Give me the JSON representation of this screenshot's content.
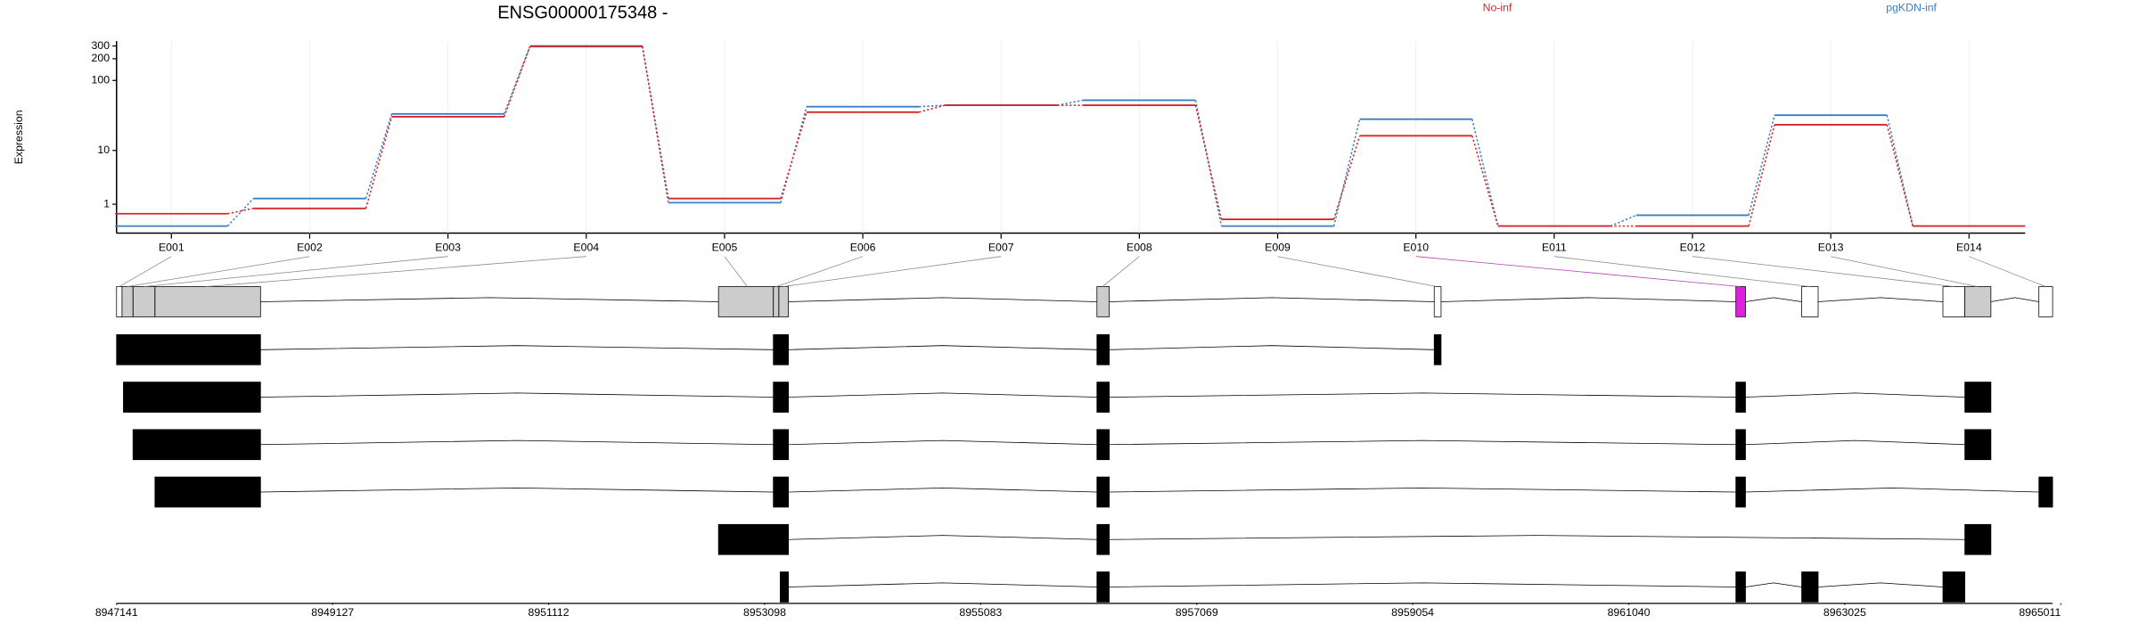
{
  "chart_data": {
    "type": "line",
    "title": "ENSG00000175348 -",
    "ylabel": "Expression",
    "categories": [
      "E001",
      "E002",
      "E003",
      "E004",
      "E005",
      "E006",
      "E007",
      "E008",
      "E009",
      "E010",
      "E011",
      "E012",
      "E013",
      "E014"
    ],
    "series": [
      {
        "name": "No-inf",
        "color": "#d62728",
        "values": [
          0.48,
          0.75,
          31,
          295,
          1.4,
          36,
          45,
          45,
          0.24,
          16.5,
          0,
          0,
          23.8,
          0
        ]
      },
      {
        "name": "pgKDN-inf",
        "color": "#3a7fc0",
        "values": [
          0,
          1.4,
          34,
          300,
          1.1,
          43,
          45,
          53,
          0,
          28.6,
          0,
          0.41,
          32.6,
          0
        ]
      }
    ],
    "ylim": [
      -0.2,
      350
    ],
    "yticks": [
      1,
      10,
      100,
      200,
      300
    ],
    "yscale": "log1p",
    "grid": true,
    "legend": "top",
    "x2lim": [
      8947141,
      8965011
    ],
    "x2ticks": [
      8947141,
      8949127,
      8951112,
      8953098,
      8955083,
      8957069,
      8959054,
      8961040,
      8963025,
      8965011
    ]
  }
}
